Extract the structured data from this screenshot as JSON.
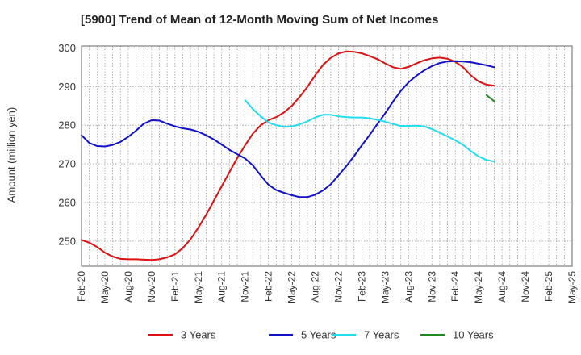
{
  "chart_data": {
    "type": "line",
    "title": "[5900]  Trend of Mean of 12-Month Moving Sum of Net Incomes",
    "ylabel": "Amount (million yen)",
    "xlabel": "",
    "ylim": [
      243.5,
      300.5
    ],
    "yticks": [
      250,
      260,
      270,
      280,
      290,
      300
    ],
    "x_tick_labels": [
      "Feb-20",
      "May-20",
      "Aug-20",
      "Nov-20",
      "Feb-21",
      "May-21",
      "Aug-21",
      "Nov-21",
      "Feb-22",
      "May-22",
      "Aug-22",
      "Nov-22",
      "Feb-23",
      "May-23",
      "Aug-23",
      "Nov-23",
      "Feb-24",
      "May-24",
      "Aug-24",
      "Nov-24",
      "Feb-25",
      "May-25"
    ],
    "grid": true,
    "legend_position": "bottom",
    "series": [
      {
        "name": "3 Years",
        "color": "#dd1111",
        "points": [
          [
            "2020-02",
            250.3
          ],
          [
            "2020-03",
            249.6
          ],
          [
            "2020-04",
            248.5
          ],
          [
            "2020-05",
            247.0
          ],
          [
            "2020-06",
            246.0
          ],
          [
            "2020-07",
            245.4
          ],
          [
            "2020-08",
            245.3
          ],
          [
            "2020-09",
            245.3
          ],
          [
            "2020-10",
            245.2
          ],
          [
            "2020-11",
            245.1
          ],
          [
            "2020-12",
            245.3
          ],
          [
            "2021-01",
            245.8
          ],
          [
            "2021-02",
            246.6
          ],
          [
            "2021-03",
            248.2
          ],
          [
            "2021-04",
            250.5
          ],
          [
            "2021-05",
            253.5
          ],
          [
            "2021-06",
            256.8
          ],
          [
            "2021-07",
            260.5
          ],
          [
            "2021-08",
            264.2
          ],
          [
            "2021-09",
            267.9
          ],
          [
            "2021-10",
            271.5
          ],
          [
            "2021-11",
            274.8
          ],
          [
            "2021-12",
            277.8
          ],
          [
            "2022-01",
            280.0
          ],
          [
            "2022-02",
            281.3
          ],
          [
            "2022-03",
            282.1
          ],
          [
            "2022-04",
            283.3
          ],
          [
            "2022-05",
            285.0
          ],
          [
            "2022-06",
            287.3
          ],
          [
            "2022-07",
            289.9
          ],
          [
            "2022-08",
            292.9
          ],
          [
            "2022-09",
            295.6
          ],
          [
            "2022-10",
            297.4
          ],
          [
            "2022-11",
            298.6
          ],
          [
            "2022-12",
            299.1
          ],
          [
            "2023-01",
            299.0
          ],
          [
            "2023-02",
            298.6
          ],
          [
            "2023-03",
            297.9
          ],
          [
            "2023-04",
            297.1
          ],
          [
            "2023-05",
            296.0
          ],
          [
            "2023-06",
            295.0
          ],
          [
            "2023-07",
            294.6
          ],
          [
            "2023-08",
            295.1
          ],
          [
            "2023-09",
            296.0
          ],
          [
            "2023-10",
            296.8
          ],
          [
            "2023-11",
            297.3
          ],
          [
            "2023-12",
            297.5
          ],
          [
            "2024-01",
            297.2
          ],
          [
            "2024-02",
            296.4
          ],
          [
            "2024-03",
            295.0
          ],
          [
            "2024-04",
            292.9
          ],
          [
            "2024-05",
            291.3
          ],
          [
            "2024-06",
            290.5
          ],
          [
            "2024-07",
            290.2
          ]
        ]
      },
      {
        "name": "5 Years",
        "color": "#1111cc",
        "points": [
          [
            "2020-02",
            277.4
          ],
          [
            "2020-03",
            275.4
          ],
          [
            "2020-04",
            274.6
          ],
          [
            "2020-05",
            274.5
          ],
          [
            "2020-06",
            274.9
          ],
          [
            "2020-07",
            275.7
          ],
          [
            "2020-08",
            277.0
          ],
          [
            "2020-09",
            278.6
          ],
          [
            "2020-10",
            280.4
          ],
          [
            "2020-11",
            281.3
          ],
          [
            "2020-12",
            281.2
          ],
          [
            "2021-01",
            280.4
          ],
          [
            "2021-02",
            279.7
          ],
          [
            "2021-03",
            279.2
          ],
          [
            "2021-04",
            278.9
          ],
          [
            "2021-05",
            278.3
          ],
          [
            "2021-06",
            277.4
          ],
          [
            "2021-07",
            276.3
          ],
          [
            "2021-08",
            275.0
          ],
          [
            "2021-09",
            273.6
          ],
          [
            "2021-10",
            272.5
          ],
          [
            "2021-11",
            271.4
          ],
          [
            "2021-12",
            269.6
          ],
          [
            "2022-01",
            267.0
          ],
          [
            "2022-02",
            264.6
          ],
          [
            "2022-03",
            263.2
          ],
          [
            "2022-04",
            262.5
          ],
          [
            "2022-05",
            261.9
          ],
          [
            "2022-06",
            261.4
          ],
          [
            "2022-07",
            261.4
          ],
          [
            "2022-08",
            262.0
          ],
          [
            "2022-09",
            263.1
          ],
          [
            "2022-10",
            264.7
          ],
          [
            "2022-11",
            267.0
          ],
          [
            "2022-12",
            269.4
          ],
          [
            "2023-01",
            272.0
          ],
          [
            "2023-02",
            274.8
          ],
          [
            "2023-03",
            277.5
          ],
          [
            "2023-04",
            280.3
          ],
          [
            "2023-05",
            283.1
          ],
          [
            "2023-06",
            286.1
          ],
          [
            "2023-07",
            288.9
          ],
          [
            "2023-08",
            291.1
          ],
          [
            "2023-09",
            292.8
          ],
          [
            "2023-10",
            294.2
          ],
          [
            "2023-11",
            295.3
          ],
          [
            "2023-12",
            296.1
          ],
          [
            "2024-01",
            296.5
          ],
          [
            "2024-02",
            296.6
          ],
          [
            "2024-03",
            296.5
          ],
          [
            "2024-04",
            296.3
          ],
          [
            "2024-05",
            295.9
          ],
          [
            "2024-06",
            295.5
          ],
          [
            "2024-07",
            295.0
          ]
        ]
      },
      {
        "name": "7 Years",
        "color": "#22ddee",
        "points": [
          [
            "2021-11",
            286.5
          ],
          [
            "2021-12",
            284.2
          ],
          [
            "2022-01",
            282.3
          ],
          [
            "2022-02",
            280.7
          ],
          [
            "2022-03",
            280.0
          ],
          [
            "2022-04",
            279.6
          ],
          [
            "2022-05",
            279.7
          ],
          [
            "2022-06",
            280.2
          ],
          [
            "2022-07",
            281.0
          ],
          [
            "2022-08",
            282.0
          ],
          [
            "2022-09",
            282.7
          ],
          [
            "2022-10",
            282.7
          ],
          [
            "2022-11",
            282.3
          ],
          [
            "2022-12",
            282.1
          ],
          [
            "2023-01",
            282.0
          ],
          [
            "2023-02",
            282.0
          ],
          [
            "2023-03",
            281.8
          ],
          [
            "2023-04",
            281.4
          ],
          [
            "2023-05",
            280.9
          ],
          [
            "2023-06",
            280.3
          ],
          [
            "2023-07",
            279.8
          ],
          [
            "2023-08",
            279.8
          ],
          [
            "2023-09",
            279.9
          ],
          [
            "2023-10",
            279.7
          ],
          [
            "2023-11",
            279.0
          ],
          [
            "2023-12",
            278.1
          ],
          [
            "2024-01",
            277.1
          ],
          [
            "2024-02",
            276.1
          ],
          [
            "2024-03",
            274.9
          ],
          [
            "2024-04",
            273.3
          ],
          [
            "2024-05",
            271.9
          ],
          [
            "2024-06",
            271.0
          ],
          [
            "2024-07",
            270.6
          ]
        ]
      },
      {
        "name": "10 Years",
        "color": "#228822",
        "points": [
          [
            "2024-06",
            287.8
          ],
          [
            "2024-07",
            286.2
          ]
        ]
      }
    ]
  }
}
